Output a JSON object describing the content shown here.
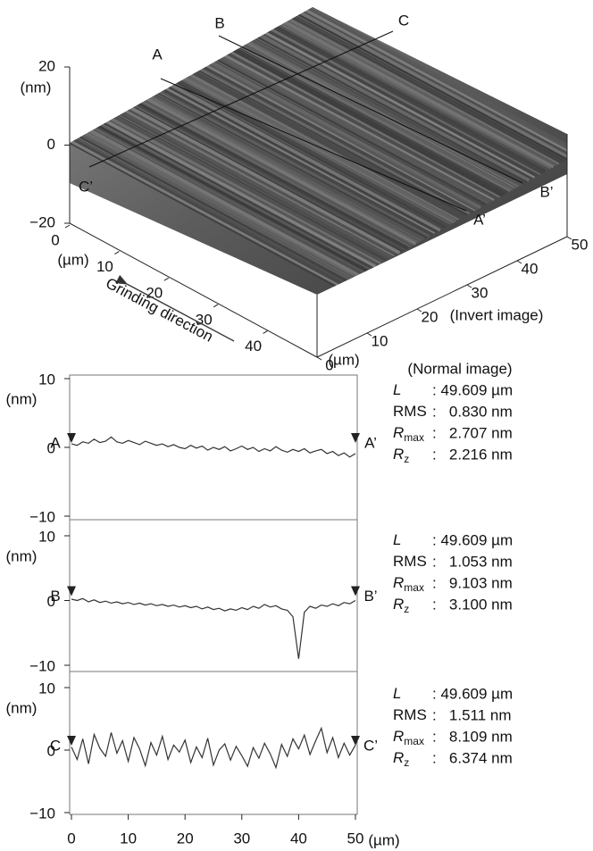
{
  "chart_data": [
    {
      "type": "surface",
      "zlabel": "(nm)",
      "zlim": [
        -20,
        20
      ],
      "zticks": [
        20,
        0,
        {
          "value": -20,
          "label": "−20"
        }
      ],
      "xlabel": "(µm)",
      "xlim": [
        0,
        50
      ],
      "xticks": [
        0,
        10,
        20,
        30,
        40
      ],
      "ylabel": "(µm)",
      "ylim": [
        0,
        50
      ],
      "yticks": [
        0,
        10,
        20,
        30,
        40,
        50
      ],
      "annotation": "Grinding direction",
      "image_label": "(Invert image)",
      "sections": [
        {
          "start": "A",
          "end": "A’"
        },
        {
          "start": "B",
          "end": "B’"
        },
        {
          "start": "C",
          "end": "C’"
        }
      ]
    },
    {
      "type": "line",
      "image_label": "(Normal image)",
      "start": "A",
      "end": "A’",
      "ylabel": "(nm)",
      "ylim": [
        -10,
        10
      ],
      "yticks": [
        10,
        0,
        {
          "value": -10,
          "label": "−10"
        }
      ],
      "xlim": [
        0,
        50
      ],
      "x": [
        0,
        1,
        2,
        3,
        4,
        5,
        6,
        7,
        8,
        9,
        10,
        11,
        12,
        13,
        14,
        15,
        16,
        17,
        18,
        19,
        20,
        21,
        22,
        23,
        24,
        25,
        26,
        27,
        28,
        29,
        30,
        31,
        32,
        33,
        34,
        35,
        36,
        37,
        38,
        39,
        40,
        41,
        42,
        43,
        44,
        45,
        46,
        47,
        48,
        49,
        50
      ],
      "values": [
        0.5,
        0.3,
        0.8,
        0.6,
        1.2,
        0.7,
        0.9,
        1.5,
        0.8,
        0.6,
        1.0,
        0.7,
        0.4,
        0.9,
        0.6,
        0.3,
        0.5,
        0.1,
        0.4,
        0.0,
        -0.2,
        0.3,
        -0.1,
        0.2,
        -0.4,
        0.0,
        -0.3,
        0.1,
        -0.5,
        -0.2,
        0.2,
        -0.3,
        0.0,
        -0.6,
        -0.2,
        -0.5,
        0.1,
        -0.4,
        -0.7,
        -0.3,
        -0.6,
        -0.2,
        -0.8,
        -0.5,
        -0.3,
        -0.9,
        -0.6,
        -1.2,
        -0.8,
        -1.4,
        -0.9
      ],
      "stats": [
        {
          "symbol": "L",
          "value": ": 49.609 µm"
        },
        {
          "symbol": "RMS",
          "value": ":   0.830 nm"
        },
        {
          "symbol": "R",
          "sub": "max",
          "value": ":   2.707 nm"
        },
        {
          "symbol": "R",
          "sub": "z",
          "value": ":   2.216 nm"
        }
      ]
    },
    {
      "type": "line",
      "start": "B",
      "end": "B’",
      "ylabel": "(nm)",
      "ylim": [
        -10,
        10
      ],
      "yticks": [
        10,
        0,
        {
          "value": -10,
          "label": "−10"
        }
      ],
      "xlim": [
        0,
        50
      ],
      "x": [
        0,
        1,
        2,
        3,
        4,
        5,
        6,
        7,
        8,
        9,
        10,
        11,
        12,
        13,
        14,
        15,
        16,
        17,
        18,
        19,
        20,
        21,
        22,
        23,
        24,
        25,
        26,
        27,
        28,
        29,
        30,
        31,
        32,
        33,
        34,
        35,
        36,
        37,
        38,
        39,
        40,
        41,
        42,
        43,
        44,
        45,
        46,
        47,
        48,
        49,
        50
      ],
      "values": [
        0.2,
        0.0,
        0.3,
        -0.2,
        0.1,
        -0.3,
        -0.1,
        -0.4,
        -0.2,
        -0.5,
        -0.3,
        -0.6,
        -0.4,
        -0.7,
        -0.5,
        -0.8,
        -0.6,
        -0.9,
        -0.7,
        -1.0,
        -0.8,
        -1.1,
        -0.9,
        -1.3,
        -1.0,
        -1.4,
        -1.2,
        -1.6,
        -1.3,
        -1.5,
        -1.1,
        -1.4,
        -0.9,
        -1.2,
        -0.6,
        -1.0,
        -0.8,
        -1.3,
        -1.5,
        -2.5,
        -9.0,
        -1.8,
        -0.9,
        -1.2,
        -0.7,
        -0.9,
        -0.5,
        -0.8,
        -0.3,
        -0.5,
        0.0
      ],
      "stats": [
        {
          "symbol": "L",
          "value": ": 49.609 µm"
        },
        {
          "symbol": "RMS",
          "value": ":   1.053 nm"
        },
        {
          "symbol": "R",
          "sub": "max",
          "value": ":   9.103 nm"
        },
        {
          "symbol": "R",
          "sub": "z",
          "value": ":   3.100 nm"
        }
      ]
    },
    {
      "type": "line",
      "start": "C",
      "end": "C’",
      "ylabel": "(nm)",
      "ylim": [
        -10,
        10
      ],
      "yticks": [
        10,
        0,
        {
          "value": -10,
          "label": "−10"
        }
      ],
      "xlim": [
        0,
        50
      ],
      "xticks": [
        0,
        10,
        20,
        30,
        40,
        50
      ],
      "xlabel": "(µm)",
      "x": [
        0,
        1,
        2,
        3,
        4,
        5,
        6,
        7,
        8,
        9,
        10,
        11,
        12,
        13,
        14,
        15,
        16,
        17,
        18,
        19,
        20,
        21,
        22,
        23,
        24,
        25,
        26,
        27,
        28,
        29,
        30,
        31,
        32,
        33,
        34,
        35,
        36,
        37,
        38,
        39,
        40,
        41,
        42,
        43,
        44,
        45,
        46,
        47,
        48,
        49,
        50
      ],
      "values": [
        0.5,
        -1.5,
        1.8,
        -2.2,
        2.5,
        0.3,
        -1.0,
        2.8,
        -0.5,
        1.5,
        -1.8,
        2.0,
        0.2,
        -2.5,
        1.2,
        -0.8,
        2.2,
        -1.5,
        0.8,
        -0.3,
        1.6,
        -2.0,
        0.5,
        -1.2,
        1.9,
        -2.4,
        0.0,
        1.0,
        -1.6,
        0.6,
        -0.9,
        -2.6,
        0.4,
        -1.3,
        1.1,
        -0.6,
        -2.8,
        0.9,
        -1.0,
        1.8,
        0.2,
        2.4,
        -0.7,
        1.5,
        3.5,
        -0.4,
        2.0,
        -1.2,
        1.1,
        -0.8,
        0.8
      ],
      "stats": [
        {
          "symbol": "L",
          "value": ": 49.609 µm"
        },
        {
          "symbol": "RMS",
          "value": ":   1.511 nm"
        },
        {
          "symbol": "R",
          "sub": "max",
          "value": ":   8.109 nm"
        },
        {
          "symbol": "R",
          "sub": "z",
          "value": ":   6.374 nm"
        }
      ]
    }
  ]
}
